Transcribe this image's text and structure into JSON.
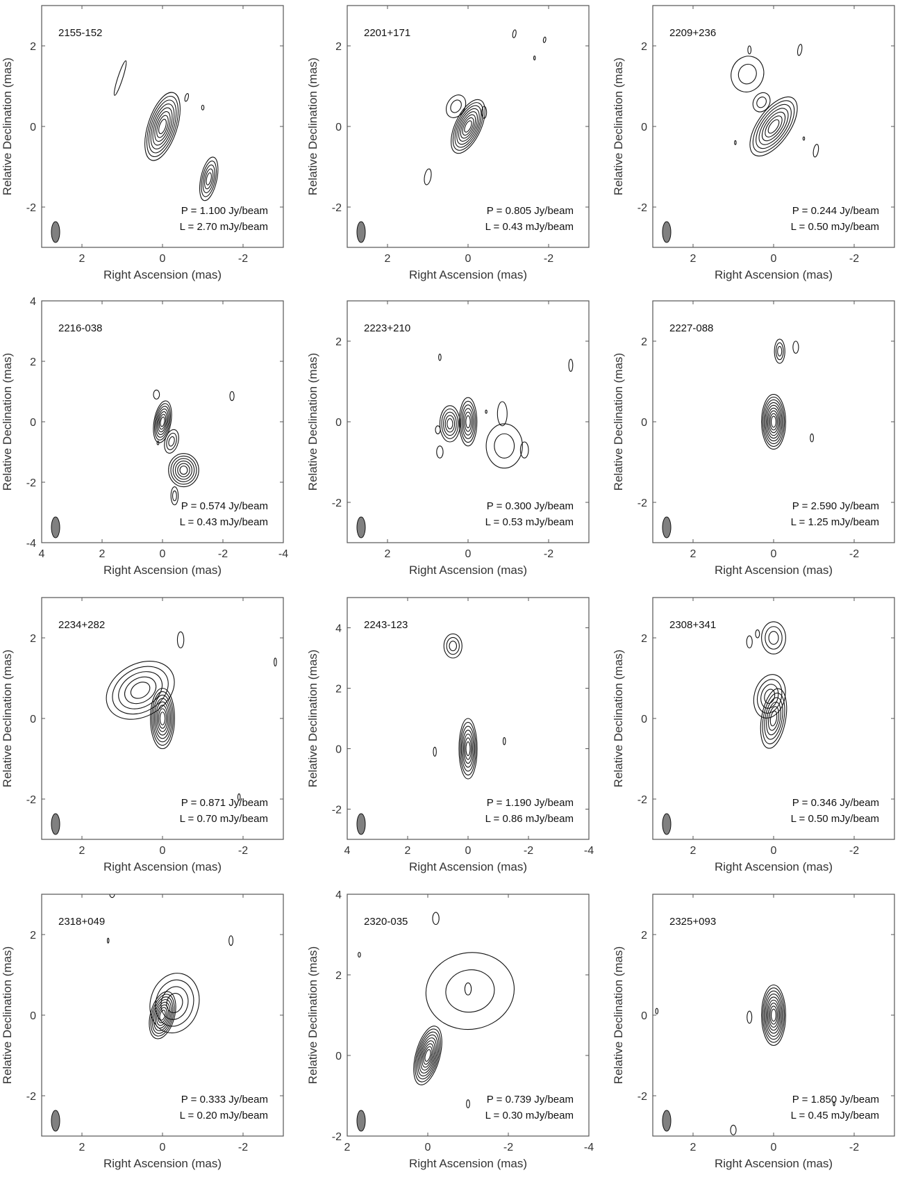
{
  "figure": {
    "panels": [
      {
        "source": "2155-152",
        "peak": "P = 1.100 Jy/beam",
        "lowest": "L = 2.70 mJy/beam",
        "xlabel": "Right Ascension (mas)",
        "ylabel": "Relative Declination (mas)",
        "xlim": [
          3,
          -3
        ],
        "ylim": [
          -3,
          3
        ],
        "xticks": [
          2,
          0,
          -2
        ],
        "yticks": [
          2,
          0,
          -2
        ],
        "components": [
          {
            "x": 0,
            "y": 0,
            "a": 0.36,
            "b": 0.88,
            "rot": 18,
            "n": 8
          },
          {
            "x": -1.15,
            "y": -1.3,
            "a": 0.2,
            "b": 0.55,
            "rot": 12,
            "n": 5
          },
          {
            "x": 1.05,
            "y": 1.2,
            "a": 0.06,
            "b": 0.45,
            "rot": 18,
            "n": 1
          },
          {
            "x": -0.6,
            "y": 0.72,
            "a": 0.04,
            "b": 0.1,
            "rot": 15,
            "n": 1
          },
          {
            "x": -1.0,
            "y": 0.47,
            "a": 0.03,
            "b": 0.06,
            "rot": 0,
            "n": 1
          }
        ]
      },
      {
        "source": "2201+171",
        "peak": "P = 0.805 Jy/beam",
        "lowest": "L = 0.43 mJy/beam",
        "xlabel": "Right Ascension (mas)",
        "ylabel": "Relative Declination (mas)",
        "xlim": [
          3,
          -3
        ],
        "ylim": [
          -3,
          3
        ],
        "xticks": [
          2,
          0,
          -2
        ],
        "yticks": [
          2,
          0,
          -2
        ],
        "components": [
          {
            "x": 0,
            "y": 0,
            "a": 0.32,
            "b": 0.72,
            "rot": 25,
            "n": 8
          },
          {
            "x": 0.3,
            "y": 0.5,
            "a": 0.22,
            "b": 0.3,
            "rot": 30,
            "n": 2
          },
          {
            "x": -0.4,
            "y": 0.35,
            "a": 0.06,
            "b": 0.15,
            "rot": 0,
            "n": 1
          },
          {
            "x": 1.0,
            "y": -1.25,
            "a": 0.08,
            "b": 0.2,
            "rot": 10,
            "n": 1
          },
          {
            "x": -1.15,
            "y": 2.3,
            "a": 0.04,
            "b": 0.1,
            "rot": 10,
            "n": 1
          },
          {
            "x": -1.9,
            "y": 2.15,
            "a": 0.03,
            "b": 0.07,
            "rot": 10,
            "n": 1
          },
          {
            "x": -1.65,
            "y": 1.7,
            "a": 0.02,
            "b": 0.05,
            "rot": 0,
            "n": 1
          }
        ]
      },
      {
        "source": "2209+236",
        "peak": "P = 0.244 Jy/beam",
        "lowest": "L = 0.50 mJy/beam",
        "xlabel": "Right Ascension (mas)",
        "ylabel": "Relative Declination (mas)",
        "xlim": [
          3,
          -3
        ],
        "ylim": [
          -3,
          3
        ],
        "xticks": [
          2,
          0,
          -2
        ],
        "yticks": [
          2,
          0,
          -2
        ],
        "components": [
          {
            "x": 0,
            "y": 0,
            "a": 0.4,
            "b": 0.85,
            "rot": 35,
            "n": 7
          },
          {
            "x": 0.65,
            "y": 1.3,
            "a": 0.4,
            "b": 0.45,
            "rot": 20,
            "n": 2
          },
          {
            "x": 0.3,
            "y": 0.6,
            "a": 0.2,
            "b": 0.25,
            "rot": 30,
            "n": 2
          },
          {
            "x": 0.6,
            "y": 1.9,
            "a": 0.04,
            "b": 0.1,
            "rot": 0,
            "n": 1
          },
          {
            "x": -0.65,
            "y": 1.9,
            "a": 0.05,
            "b": 0.14,
            "rot": 10,
            "n": 1
          },
          {
            "x": -1.05,
            "y": -0.6,
            "a": 0.06,
            "b": 0.16,
            "rot": 10,
            "n": 1
          },
          {
            "x": 0.95,
            "y": -0.4,
            "a": 0.02,
            "b": 0.05,
            "rot": 0,
            "n": 1
          },
          {
            "x": -0.75,
            "y": -0.3,
            "a": 0.02,
            "b": 0.04,
            "rot": 0,
            "n": 1
          }
        ]
      },
      {
        "source": "2216-038",
        "peak": "P = 0.574 Jy/beam",
        "lowest": "L = 0.43 mJy/beam",
        "xlabel": "Right Ascension (mas)",
        "ylabel": "Relative Declination (mas)",
        "xlim": [
          4,
          -4
        ],
        "ylim": [
          -4,
          4
        ],
        "xticks": [
          4,
          2,
          0,
          -2,
          -4
        ],
        "yticks": [
          4,
          2,
          0,
          -2,
          -4
        ],
        "components": [
          {
            "x": 0,
            "y": 0,
            "a": 0.28,
            "b": 0.7,
            "rot": 10,
            "n": 7
          },
          {
            "x": -0.3,
            "y": -0.65,
            "a": 0.22,
            "b": 0.4,
            "rot": 15,
            "n": 3
          },
          {
            "x": -0.7,
            "y": -1.6,
            "a": 0.5,
            "b": 0.55,
            "rot": 0,
            "n": 6
          },
          {
            "x": -0.4,
            "y": -2.45,
            "a": 0.12,
            "b": 0.3,
            "rot": 0,
            "n": 2
          },
          {
            "x": 0.2,
            "y": 0.9,
            "a": 0.1,
            "b": 0.15,
            "rot": 0,
            "n": 1
          },
          {
            "x": -2.3,
            "y": 0.85,
            "a": 0.07,
            "b": 0.15,
            "rot": 0,
            "n": 1
          },
          {
            "x": 0.15,
            "y": -0.7,
            "a": 0.03,
            "b": 0.06,
            "rot": 0,
            "n": 1
          }
        ]
      },
      {
        "source": "2223+210",
        "peak": "P = 0.300 Jy/beam",
        "lowest": "L = 0.53 mJy/beam",
        "xlabel": "Right Ascension (mas)",
        "ylabel": "Relative Declination (mas)",
        "xlim": [
          3,
          -3
        ],
        "ylim": [
          -3,
          3
        ],
        "xticks": [
          2,
          0,
          -2
        ],
        "yticks": [
          2,
          0,
          -2
        ],
        "components": [
          {
            "x": 0,
            "y": 0,
            "a": 0.22,
            "b": 0.6,
            "rot": 0,
            "n": 6
          },
          {
            "x": 0.45,
            "y": -0.05,
            "a": 0.25,
            "b": 0.45,
            "rot": 0,
            "n": 5
          },
          {
            "x": -0.9,
            "y": -0.6,
            "a": 0.45,
            "b": 0.55,
            "rot": 0,
            "n": 2
          },
          {
            "x": -0.85,
            "y": 0.2,
            "a": 0.12,
            "b": 0.3,
            "rot": 0,
            "n": 1
          },
          {
            "x": -1.4,
            "y": -0.7,
            "a": 0.1,
            "b": 0.2,
            "rot": 0,
            "n": 1
          },
          {
            "x": 0.7,
            "y": -0.75,
            "a": 0.08,
            "b": 0.15,
            "rot": 0,
            "n": 1
          },
          {
            "x": 0.75,
            "y": -0.2,
            "a": 0.06,
            "b": 0.1,
            "rot": 0,
            "n": 1
          },
          {
            "x": 0.7,
            "y": 1.6,
            "a": 0.03,
            "b": 0.08,
            "rot": 0,
            "n": 1
          },
          {
            "x": -2.55,
            "y": 1.4,
            "a": 0.05,
            "b": 0.15,
            "rot": 0,
            "n": 1
          },
          {
            "x": -0.45,
            "y": 0.25,
            "a": 0.02,
            "b": 0.04,
            "rot": 0,
            "n": 1
          }
        ]
      },
      {
        "source": "2227-088",
        "peak": "P = 2.590 Jy/beam",
        "lowest": "L = 1.25 mJy/beam",
        "xlabel": "Right Ascension (mas)",
        "ylabel": "Relative Declination (mas)",
        "xlim": [
          3,
          -3
        ],
        "ylim": [
          -3,
          3
        ],
        "xticks": [
          2,
          0,
          -2
        ],
        "yticks": [
          2,
          0,
          -2
        ],
        "components": [
          {
            "x": 0,
            "y": 0,
            "a": 0.3,
            "b": 0.68,
            "rot": 0,
            "n": 9
          },
          {
            "x": -0.15,
            "y": 1.75,
            "a": 0.13,
            "b": 0.3,
            "rot": 0,
            "n": 3
          },
          {
            "x": -0.55,
            "y": 1.85,
            "a": 0.07,
            "b": 0.15,
            "rot": 0,
            "n": 1
          },
          {
            "x": -0.95,
            "y": -0.4,
            "a": 0.04,
            "b": 0.1,
            "rot": 0,
            "n": 1
          }
        ]
      },
      {
        "source": "2234+282",
        "peak": "P = 0.871 Jy/beam",
        "lowest": "L = 0.70 mJy/beam",
        "xlabel": "Right Ascension (mas)",
        "ylabel": "Relative Declination (mas)",
        "xlim": [
          3,
          -3
        ],
        "ylim": [
          -3,
          3
        ],
        "xticks": [
          2,
          0,
          -2
        ],
        "yticks": [
          2,
          0,
          -2
        ],
        "components": [
          {
            "x": 0,
            "y": 0,
            "a": 0.3,
            "b": 0.75,
            "rot": 0,
            "n": 8
          },
          {
            "x": 0.55,
            "y": 0.7,
            "a": 0.9,
            "b": 0.65,
            "rot": -30,
            "n": 5
          },
          {
            "x": -0.45,
            "y": 1.95,
            "a": 0.08,
            "b": 0.2,
            "rot": 0,
            "n": 1
          },
          {
            "x": -2.8,
            "y": 1.4,
            "a": 0.03,
            "b": 0.1,
            "rot": 0,
            "n": 1
          },
          {
            "x": -1.9,
            "y": -1.95,
            "a": 0.03,
            "b": 0.08,
            "rot": 0,
            "n": 1
          }
        ]
      },
      {
        "source": "2243-123",
        "peak": "P = 1.190 Jy/beam",
        "lowest": "L = 0.86 mJy/beam",
        "xlabel": "Right Ascension (mas)",
        "ylabel": "Relative Declination (mas)",
        "xlim": [
          4,
          -4
        ],
        "ylim": [
          -3,
          5
        ],
        "xticks": [
          4,
          2,
          0,
          -2,
          -4
        ],
        "yticks": [
          4,
          2,
          0,
          -2
        ],
        "components": [
          {
            "x": 0,
            "y": 0,
            "a": 0.3,
            "b": 1.0,
            "rot": 0,
            "n": 7
          },
          {
            "x": 0.5,
            "y": 3.4,
            "a": 0.3,
            "b": 0.4,
            "rot": 0,
            "n": 3
          },
          {
            "x": 1.1,
            "y": -0.1,
            "a": 0.05,
            "b": 0.15,
            "rot": 0,
            "n": 1
          },
          {
            "x": -1.2,
            "y": 0.25,
            "a": 0.04,
            "b": 0.12,
            "rot": 0,
            "n": 1
          }
        ]
      },
      {
        "source": "2308+341",
        "peak": "P = 0.346 Jy/beam",
        "lowest": "L = 0.50 mJy/beam",
        "xlabel": "Right Ascension (mas)",
        "ylabel": "Relative Declination (mas)",
        "xlim": [
          3,
          -3
        ],
        "ylim": [
          -3,
          3
        ],
        "xticks": [
          2,
          0,
          -2
        ],
        "yticks": [
          2,
          0,
          -2
        ],
        "components": [
          {
            "x": 0,
            "y": 0,
            "a": 0.3,
            "b": 0.75,
            "rot": 10,
            "n": 6
          },
          {
            "x": 0.1,
            "y": 0.55,
            "a": 0.38,
            "b": 0.55,
            "rot": 15,
            "n": 4
          },
          {
            "x": 0,
            "y": 2.0,
            "a": 0.3,
            "b": 0.4,
            "rot": 0,
            "n": 3
          },
          {
            "x": 0.6,
            "y": 1.9,
            "a": 0.07,
            "b": 0.15,
            "rot": 0,
            "n": 1
          },
          {
            "x": 0.4,
            "y": 2.1,
            "a": 0.05,
            "b": 0.1,
            "rot": 0,
            "n": 1
          }
        ]
      },
      {
        "source": "2318+049",
        "peak": "P = 0.333 Jy/beam",
        "lowest": "L = 0.20 mJy/beam",
        "xlabel": "Right Ascension (mas)",
        "ylabel": "Relative Declination (mas)",
        "xlim": [
          3,
          -3
        ],
        "ylim": [
          -3,
          3
        ],
        "xticks": [
          2,
          0,
          -2
        ],
        "yticks": [
          2,
          0,
          -2
        ],
        "components": [
          {
            "x": 0,
            "y": 0,
            "a": 0.3,
            "b": 0.6,
            "rot": 15,
            "n": 8
          },
          {
            "x": -0.3,
            "y": 0.3,
            "a": 0.6,
            "b": 0.75,
            "rot": 15,
            "n": 4
          },
          {
            "x": 1.35,
            "y": 1.85,
            "a": 0.02,
            "b": 0.06,
            "rot": 0,
            "n": 1
          },
          {
            "x": -1.7,
            "y": 1.85,
            "a": 0.05,
            "b": 0.12,
            "rot": 0,
            "n": 1
          },
          {
            "x": 1.25,
            "y": 3.0,
            "a": 0.06,
            "b": 0.08,
            "rot": 0,
            "n": 1
          }
        ]
      },
      {
        "source": "2320-035",
        "peak": "P = 0.739 Jy/beam",
        "lowest": "L = 0.30 mJy/beam",
        "xlabel": "Right Ascension (mas)",
        "ylabel": "Relative Declination (mas)",
        "xlim": [
          2,
          -4
        ],
        "ylim": [
          -2,
          4
        ],
        "xticks": [
          2,
          0,
          -2,
          -4
        ],
        "yticks": [
          4,
          2,
          0,
          -2
        ],
        "components": [
          {
            "x": 0,
            "y": 0,
            "a": 0.3,
            "b": 0.75,
            "rot": 15,
            "n": 9
          },
          {
            "x": -1.05,
            "y": 1.6,
            "a": 1.1,
            "b": 0.95,
            "rot": -10,
            "n": 2
          },
          {
            "x": -1.0,
            "y": 1.65,
            "a": 0.08,
            "b": 0.15,
            "rot": 0,
            "n": 1
          },
          {
            "x": -0.2,
            "y": 3.4,
            "a": 0.08,
            "b": 0.15,
            "rot": 0,
            "n": 1
          },
          {
            "x": 1.7,
            "y": 2.5,
            "a": 0.03,
            "b": 0.06,
            "rot": 0,
            "n": 1
          },
          {
            "x": -1.0,
            "y": -1.2,
            "a": 0.04,
            "b": 0.1,
            "rot": 0,
            "n": 1
          }
        ]
      },
      {
        "source": "2325+093",
        "peak": "P = 1.850 Jy/beam",
        "lowest": "L = 0.45 mJy/beam",
        "xlabel": "Right Ascension (mas)",
        "ylabel": "Relative Declination (mas)",
        "xlim": [
          3,
          -3
        ],
        "ylim": [
          -3,
          3
        ],
        "xticks": [
          2,
          0,
          -2
        ],
        "yticks": [
          2,
          0,
          -2
        ],
        "components": [
          {
            "x": 0,
            "y": 0,
            "a": 0.3,
            "b": 0.75,
            "rot": 0,
            "n": 9
          },
          {
            "x": 0.6,
            "y": -0.05,
            "a": 0.06,
            "b": 0.15,
            "rot": 0,
            "n": 1
          },
          {
            "x": 2.9,
            "y": 0.1,
            "a": 0.03,
            "b": 0.07,
            "rot": 0,
            "n": 1
          },
          {
            "x": 1.0,
            "y": -2.85,
            "a": 0.07,
            "b": 0.12,
            "rot": 0,
            "n": 1
          },
          {
            "x": -1.5,
            "y": -2.2,
            "a": 0.02,
            "b": 0.05,
            "rot": 0,
            "n": 1
          }
        ]
      }
    ]
  }
}
